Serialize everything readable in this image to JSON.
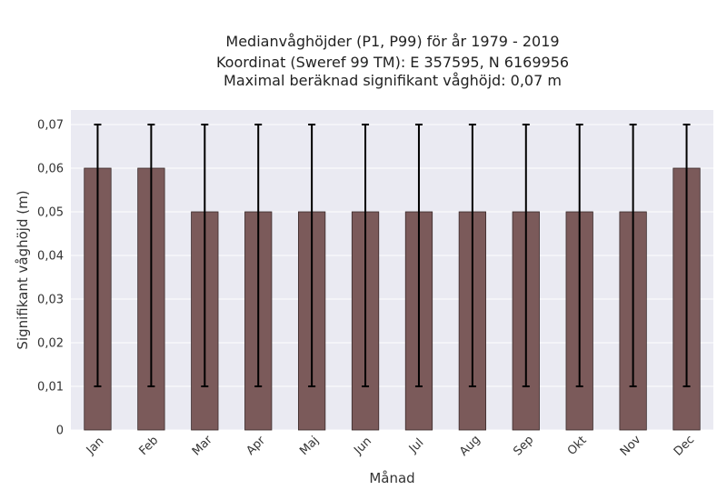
{
  "chart_data": {
    "type": "bar",
    "title_lines": [
      "Medianvåghöjder (P1, P99) för år 1979 - 2019",
      "Koordinat (Sweref 99 TM): E 357595, N 6169956",
      "Maximal beräknad signifikant våghöjd: 0,07 m"
    ],
    "xlabel": "Månad",
    "ylabel": "Signifikant våghöjd (m)",
    "categories": [
      "Jan",
      "Feb",
      "Mar",
      "Apr",
      "Maj",
      "Jun",
      "Jul",
      "Aug",
      "Sep",
      "Okt",
      "Nov",
      "Dec"
    ],
    "values": [
      0.06,
      0.06,
      0.05,
      0.05,
      0.05,
      0.05,
      0.05,
      0.05,
      0.05,
      0.05,
      0.05,
      0.06
    ],
    "error_low": [
      0.01,
      0.01,
      0.01,
      0.01,
      0.01,
      0.01,
      0.01,
      0.01,
      0.01,
      0.01,
      0.01,
      0.01
    ],
    "error_high": [
      0.07,
      0.07,
      0.07,
      0.07,
      0.07,
      0.07,
      0.07,
      0.07,
      0.07,
      0.07,
      0.07,
      0.07
    ],
    "ylim": [
      0,
      0.07
    ],
    "yticks": [
      "0",
      "0,01",
      "0,02",
      "0,03",
      "0,04",
      "0,05",
      "0,06",
      "0,07"
    ],
    "grid": true,
    "colors": {
      "bar": "#7b5a5a",
      "bar_edge": "#3a2a2a",
      "error": "#000000",
      "plot_bg": "#eaeaf2",
      "grid": "#ffffff"
    }
  }
}
